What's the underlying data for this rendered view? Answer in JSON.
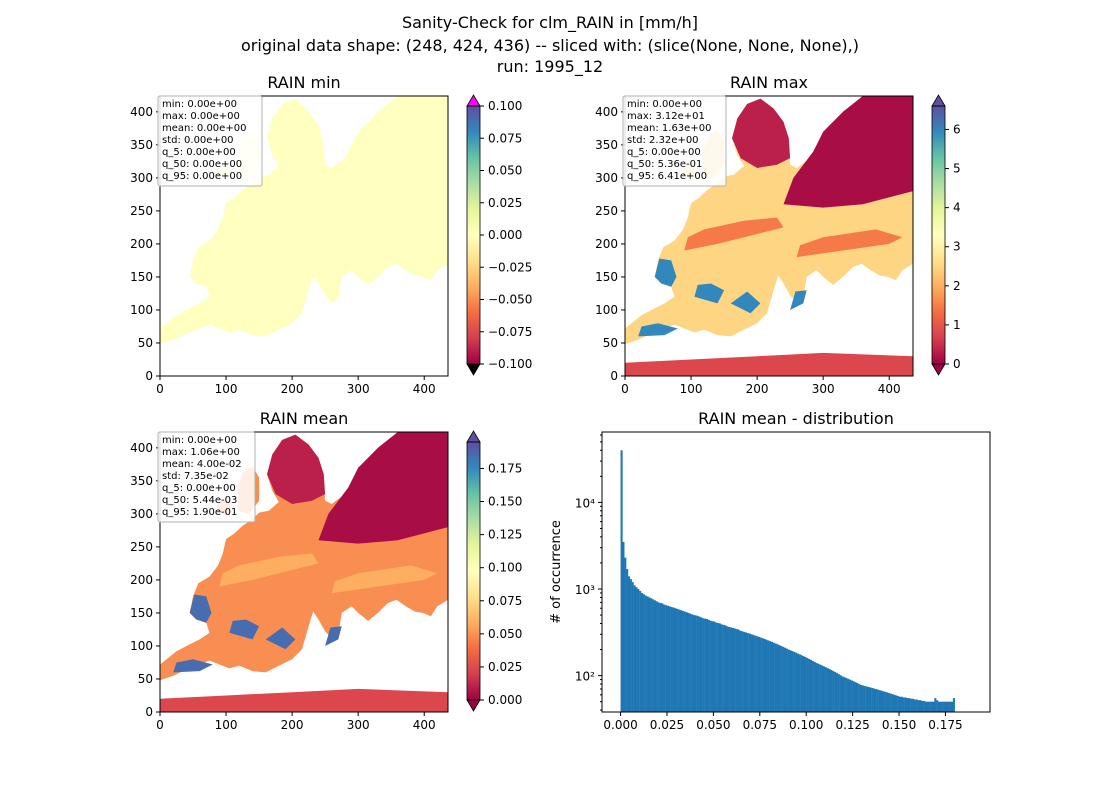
{
  "figure": {
    "suptitle_lines": [
      "Sanity-Check for clm_RAIN in [mm/h]",
      "original data shape: (248, 424, 436) -- sliced with: (slice(None, None, None),)",
      "run: 1995_12"
    ]
  },
  "colors": {
    "histogram_bar": "#1f77b4",
    "cmap": "Spectral"
  },
  "chart_data": [
    {
      "type": "heatmap",
      "title": "RAIN min",
      "xlim": [
        0,
        436
      ],
      "ylim": [
        0,
        424
      ],
      "xticks": [
        "0",
        "100",
        "200",
        "300",
        "400"
      ],
      "yticks": [
        "0",
        "50",
        "100",
        "150",
        "200",
        "250",
        "300",
        "350",
        "400"
      ],
      "colorbar": {
        "min": -0.1,
        "max": 0.1,
        "extend": "both",
        "ticks": [
          "−0.100",
          "−0.075",
          "−0.050",
          "−0.025",
          "0.000",
          "0.025",
          "0.050",
          "0.075",
          "0.100"
        ]
      },
      "stats": [
        "min: 0.00e+00",
        "max: 0.00e+00",
        "mean: 0.00e+00",
        "std: 0.00e+00",
        "q_5: 0.00e+00",
        "q_50: 0.00e+00",
        "q_95: 0.00e+00"
      ]
    },
    {
      "type": "heatmap",
      "title": "RAIN max",
      "xlim": [
        0,
        436
      ],
      "ylim": [
        0,
        424
      ],
      "xticks": [
        "0",
        "100",
        "200",
        "300",
        "400"
      ],
      "yticks": [
        "0",
        "50",
        "100",
        "150",
        "200",
        "250",
        "300",
        "350",
        "400"
      ],
      "colorbar": {
        "min": 0,
        "max": 6.6,
        "extend": "both",
        "ticks": [
          "0",
          "1",
          "2",
          "3",
          "4",
          "5",
          "6"
        ]
      },
      "stats": [
        "min: 0.00e+00",
        "max: 3.12e+01",
        "mean: 1.63e+00",
        "std: 2.32e+00",
        "q_5: 0.00e+00",
        "q_50: 5.36e-01",
        "q_95: 6.41e+00"
      ]
    },
    {
      "type": "heatmap",
      "title": "RAIN mean",
      "xlim": [
        0,
        436
      ],
      "ylim": [
        0,
        424
      ],
      "xticks": [
        "0",
        "100",
        "200",
        "300",
        "400"
      ],
      "yticks": [
        "0",
        "50",
        "100",
        "150",
        "200",
        "250",
        "300",
        "350",
        "400"
      ],
      "colorbar": {
        "min": 0,
        "max": 0.195,
        "extend": "both",
        "ticks": [
          "0.000",
          "0.025",
          "0.050",
          "0.075",
          "0.100",
          "0.125",
          "0.150",
          "0.175"
        ]
      },
      "stats": [
        "min: 0.00e+00",
        "max: 1.06e+00",
        "mean: 4.00e-02",
        "std: 7.35e-02",
        "q_5: 0.00e+00",
        "q_50: 5.44e-03",
        "q_95: 1.90e-01"
      ]
    },
    {
      "type": "bar",
      "title": "RAIN mean - distribution",
      "ylabel": "# of occurrence",
      "xlabel": "",
      "yscale": "log",
      "xlim": [
        -0.01,
        0.199
      ],
      "ylim": [
        38,
        65000
      ],
      "xticks": [
        "0.000",
        "0.025",
        "0.050",
        "0.075",
        "0.100",
        "0.125",
        "0.150",
        "0.175"
      ],
      "yticks": [
        "10²",
        "10³",
        "10⁴"
      ],
      "bin_start": 0.0,
      "bin_width": 0.001,
      "values": [
        40000,
        3500,
        2300,
        1700,
        1400,
        1300,
        1200,
        1100,
        1050,
        1000,
        950,
        900,
        870,
        840,
        820,
        800,
        780,
        760,
        740,
        720,
        700,
        690,
        680,
        660,
        650,
        640,
        630,
        620,
        610,
        600,
        590,
        580,
        570,
        560,
        550,
        540,
        530,
        520,
        510,
        500,
        495,
        490,
        480,
        470,
        460,
        455,
        450,
        440,
        430,
        425,
        420,
        410,
        405,
        400,
        390,
        385,
        380,
        370,
        365,
        360,
        355,
        350,
        345,
        340,
        330,
        325,
        320,
        315,
        310,
        305,
        300,
        295,
        290,
        285,
        280,
        275,
        270,
        265,
        260,
        255,
        250,
        245,
        240,
        235,
        230,
        225,
        220,
        215,
        210,
        205,
        200,
        196,
        192,
        188,
        184,
        180,
        176,
        172,
        168,
        164,
        160,
        156,
        152,
        148,
        144,
        140,
        137,
        134,
        131,
        128,
        125,
        122,
        119,
        116,
        113,
        110,
        107,
        104,
        101,
        98,
        96,
        94,
        92,
        90,
        88,
        86,
        84,
        82,
        80,
        78,
        77,
        76,
        75,
        74,
        73,
        72,
        71,
        70,
        69,
        68,
        67,
        66,
        65,
        64,
        63,
        62,
        61,
        60,
        59,
        58,
        57,
        57,
        56,
        56,
        55,
        55,
        54,
        54,
        53,
        53,
        52,
        52,
        51,
        51,
        50,
        50,
        50,
        50,
        50,
        55,
        52,
        50,
        50,
        50,
        50,
        50,
        50,
        50,
        50,
        55
      ]
    }
  ]
}
